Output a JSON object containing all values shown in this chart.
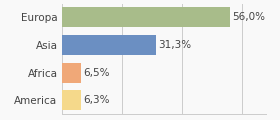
{
  "categories": [
    "America",
    "Africa",
    "Asia",
    "Europa"
  ],
  "values": [
    6.3,
    6.5,
    31.3,
    56.0
  ],
  "labels": [
    "6,3%",
    "6,5%",
    "31,3%",
    "56,0%"
  ],
  "bar_colors": [
    "#f5d98b",
    "#f0a878",
    "#6b8fc2",
    "#a8bc8a"
  ],
  "xlim": [
    0,
    68
  ],
  "background_color": "#f9f9f9",
  "label_fontsize": 7.5,
  "tick_fontsize": 7.5,
  "bar_height": 0.72,
  "grid_ticks": [
    0,
    20,
    40,
    60
  ],
  "grid_color": "#cccccc",
  "text_color": "#444444"
}
